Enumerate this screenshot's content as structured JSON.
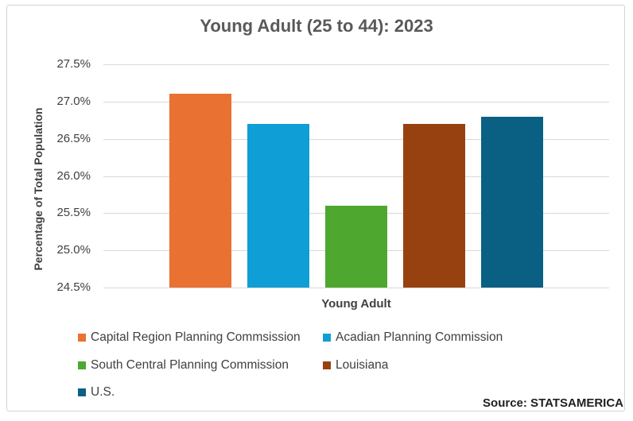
{
  "chart_data": {
    "type": "bar",
    "title": "Young Adult (25 to 44): 2023",
    "xlabel": "Young Adult",
    "ylabel": "Percentage of Total Population",
    "ylim": [
      24.5,
      27.5
    ],
    "yticks": [
      "27.5%",
      "27.0%",
      "26.5%",
      "26.0%",
      "25.5%",
      "25.0%",
      "24.5%"
    ],
    "ytick_values": [
      27.5,
      27.0,
      26.5,
      26.0,
      25.5,
      25.0,
      24.5
    ],
    "grid": true,
    "legend_position": "bottom",
    "categories": [
      "Young Adult"
    ],
    "series": [
      {
        "name": "Capital Region Planning Commsission",
        "values": [
          27.1
        ],
        "color": "#e97132"
      },
      {
        "name": "Acadian Planning Commission",
        "values": [
          26.7
        ],
        "color": "#0f9ed5"
      },
      {
        "name": "South Central Planning Commission",
        "values": [
          25.6
        ],
        "color": "#4ea72e"
      },
      {
        "name": "Louisiana",
        "values": [
          26.7
        ],
        "color": "#974110"
      },
      {
        "name": "U.S.",
        "values": [
          26.8
        ],
        "color": "#0a6082"
      }
    ]
  },
  "source": "Source: STATSAMERICA"
}
